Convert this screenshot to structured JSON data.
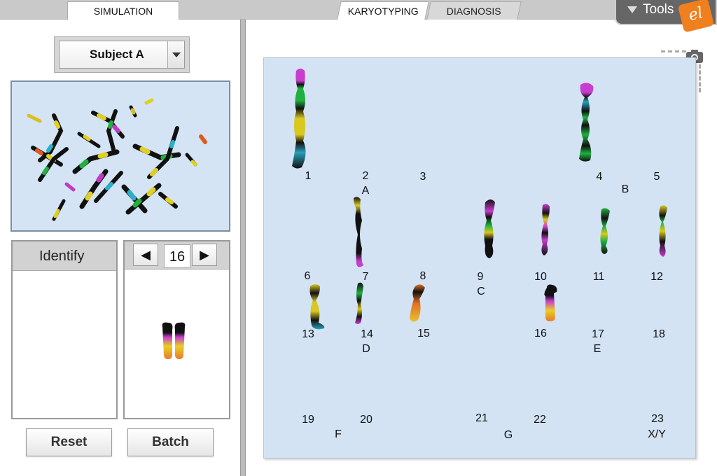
{
  "tabs": [
    {
      "label": "SIMULATION"
    },
    {
      "label": "KARYOTYPING"
    },
    {
      "label": "DIAGNOSIS"
    }
  ],
  "tools": {
    "label": "Tools",
    "logo_text": "el"
  },
  "subject": {
    "selected": "Subject A"
  },
  "identify": {
    "title": "Identify"
  },
  "viewer": {
    "current": "16"
  },
  "buttons": {
    "reset": "Reset",
    "batch": "Batch"
  },
  "slots": [
    "1",
    "2",
    "3",
    "4",
    "5",
    "6",
    "7",
    "8",
    "9",
    "10",
    "11",
    "12",
    "13",
    "14",
    "15",
    "16",
    "17",
    "18",
    "19",
    "20",
    "21",
    "22",
    "23"
  ],
  "groups": [
    "A",
    "B",
    "C",
    "D",
    "E",
    "F",
    "G",
    "X/Y"
  ],
  "icons": {
    "camera": "camera-icon",
    "dropdown": "chevron-down-icon",
    "prev": "triangle-left-icon",
    "next": "triangle-right-icon",
    "tools": "triangle-down-icon"
  },
  "colors": {
    "board": "#d3e3f4",
    "tools_bg": "#666666",
    "logo": "#f07f1e"
  }
}
